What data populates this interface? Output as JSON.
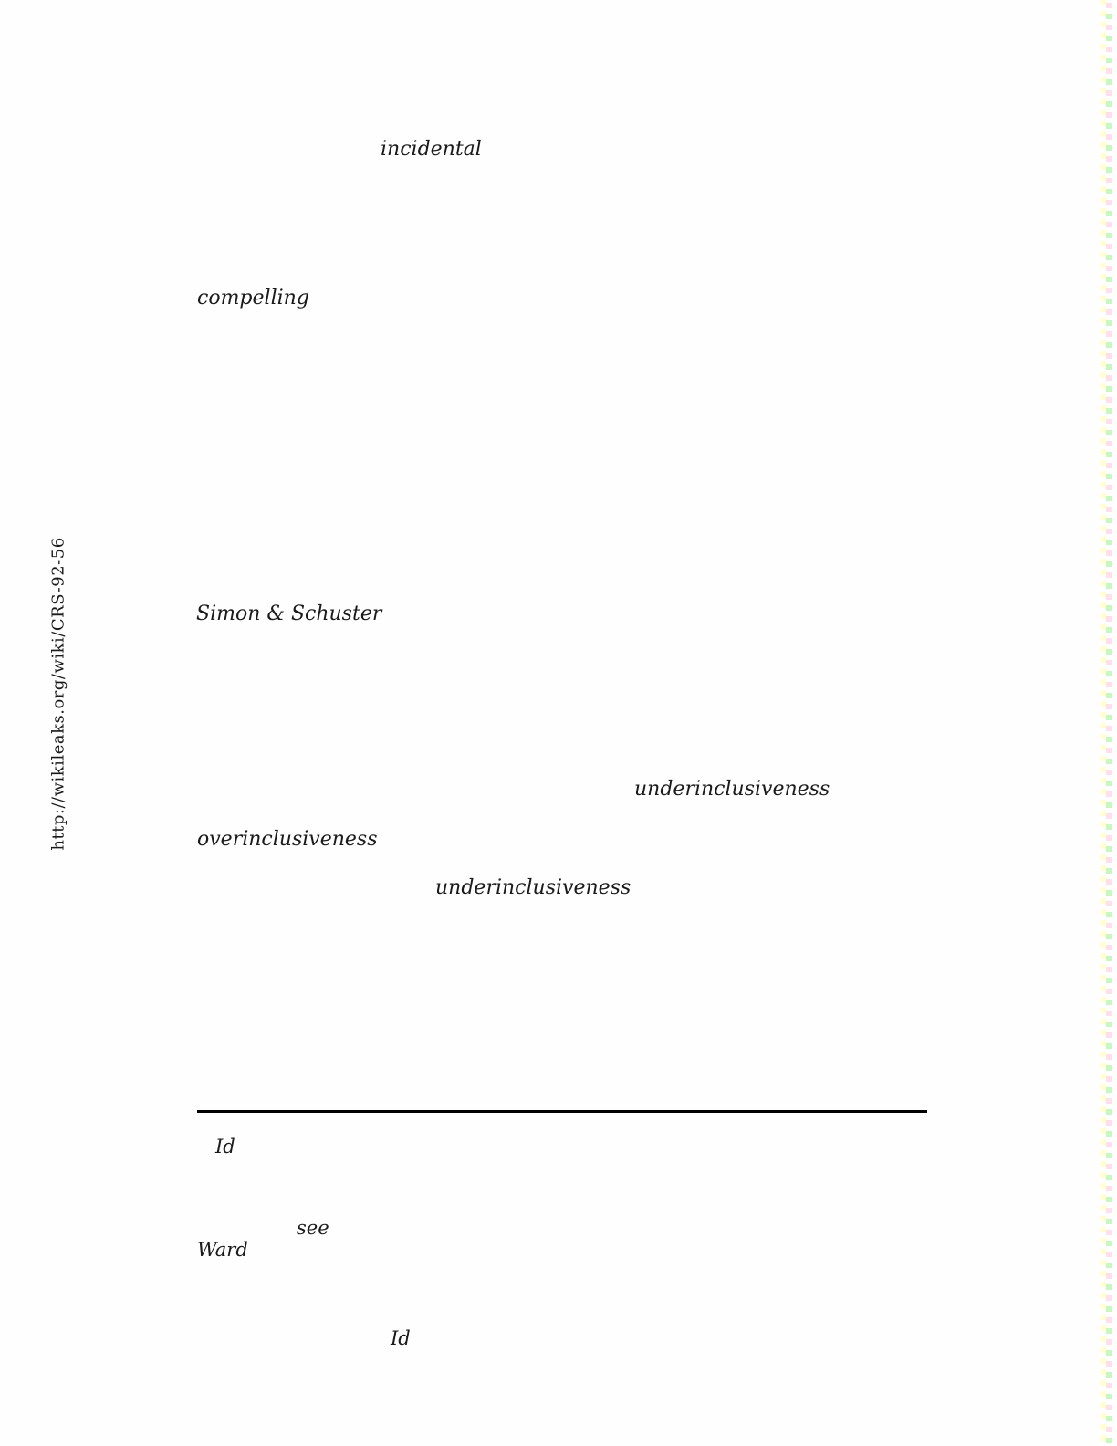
{
  "page": {
    "kind": "document-page",
    "background": "#fefefe",
    "text_color": "#1a1a1a"
  },
  "sidebar": {
    "url": "http://wikileaks.org/wiki/CRS-92-56"
  },
  "words": [
    {
      "text": "incidental"
    },
    {
      "text": "compelling"
    },
    {
      "text": "Simon & Schuster"
    },
    {
      "text": "underinclusiveness"
    },
    {
      "text": "overinclusiveness"
    },
    {
      "text": "underinclusiveness"
    },
    {
      "text": "Id"
    },
    {
      "text": "see"
    },
    {
      "text": "Ward"
    },
    {
      "text": "Id"
    }
  ],
  "separator": {
    "color": "#000000"
  },
  "edge_pattern": {
    "yellow": "#ffffcf",
    "pink": "#ffdfee",
    "green": "#c9f7c4"
  }
}
